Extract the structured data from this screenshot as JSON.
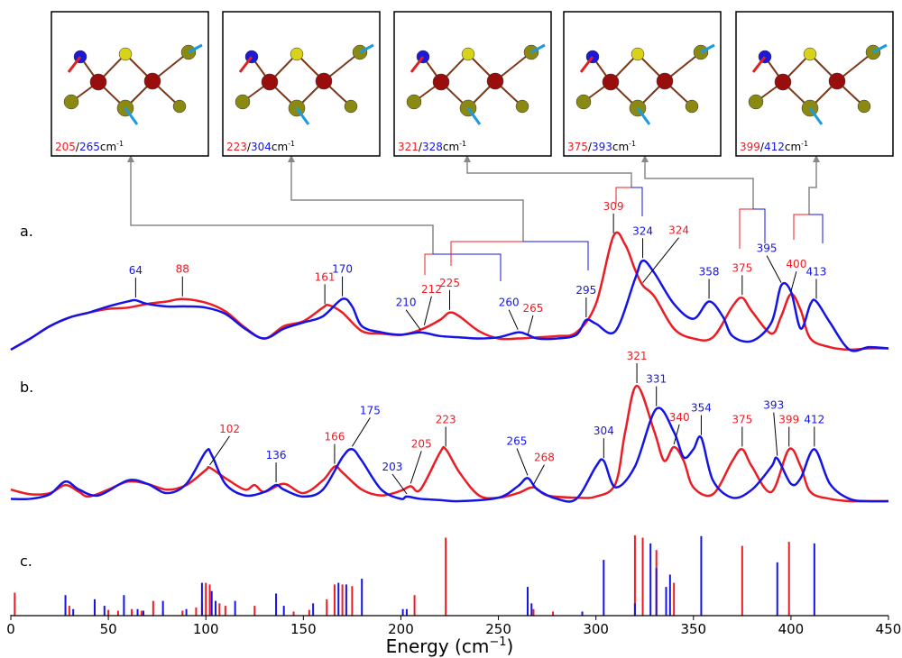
{
  "chart_data": [
    {
      "type": "line",
      "label": "a.",
      "xlim": [
        0,
        450
      ],
      "ylim": [
        0,
        100
      ],
      "series": [
        {
          "color": "#ec1c24",
          "x": [
            0,
            10,
            20,
            30,
            40,
            50,
            60,
            70,
            80,
            88,
            100,
            110,
            120,
            130,
            140,
            150,
            160,
            163,
            170,
            180,
            190,
            200,
            210,
            220,
            225,
            230,
            240,
            250,
            260,
            270,
            280,
            290,
            300,
            309,
            315,
            320,
            324,
            330,
            340,
            350,
            360,
            370,
            375,
            380,
            390,
            395,
            400,
            405,
            410,
            420,
            430,
            440,
            450
          ],
          "values": [
            3,
            12,
            22,
            29,
            33,
            36,
            37,
            40,
            42,
            44,
            41,
            34,
            21,
            12,
            22,
            26,
            37,
            39,
            33,
            18,
            16,
            15,
            19,
            27,
            33,
            30,
            18,
            12,
            12,
            13,
            14,
            17,
            40,
            95,
            88,
            68,
            55,
            46,
            20,
            12,
            13,
            38,
            45,
            34,
            16,
            30,
            48,
            35,
            12,
            5,
            3,
            4,
            4
          ],
          "peaks": [
            88,
            161,
            212,
            225,
            265,
            309,
            324,
            375,
            400
          ]
        },
        {
          "color": "#1414e6",
          "x": [
            0,
            10,
            20,
            30,
            40,
            50,
            60,
            64,
            70,
            80,
            90,
            100,
            110,
            120,
            130,
            140,
            150,
            160,
            170,
            175,
            180,
            190,
            200,
            210,
            220,
            230,
            240,
            250,
            260,
            265,
            270,
            280,
            290,
            295,
            300,
            310,
            320,
            324,
            330,
            340,
            350,
            358,
            365,
            370,
            380,
            390,
            395,
            400,
            405,
            410,
            413,
            420,
            430,
            440,
            450
          ],
          "values": [
            3,
            12,
            22,
            29,
            33,
            38,
            42,
            43,
            40,
            38,
            38,
            37,
            32,
            20,
            12,
            20,
            25,
            30,
            44,
            38,
            22,
            17,
            15,
            17,
            14,
            13,
            12,
            13,
            17,
            15,
            12,
            12,
            15,
            27,
            24,
            18,
            60,
            75,
            65,
            40,
            28,
            42,
            30,
            14,
            10,
            25,
            55,
            50,
            20,
            40,
            42,
            25,
            3,
            5,
            4
          ],
          "peaks": [
            64,
            170,
            210,
            260,
            295,
            324,
            358,
            395,
            413
          ]
        }
      ]
    },
    {
      "type": "line",
      "label": "b.",
      "xlim": [
        0,
        450
      ],
      "ylim": [
        0,
        100
      ],
      "series": [
        {
          "color": "#ec1c24",
          "x": [
            0,
            10,
            20,
            28,
            35,
            40,
            50,
            60,
            70,
            80,
            90,
            100,
            102,
            110,
            120,
            125,
            130,
            140,
            150,
            160,
            166,
            170,
            180,
            190,
            200,
            205,
            210,
            220,
            223,
            230,
            240,
            250,
            260,
            268,
            275,
            290,
            300,
            310,
            315,
            321,
            330,
            335,
            340,
            345,
            350,
            360,
            370,
            375,
            380,
            390,
            399,
            405,
            410,
            420,
            430,
            440,
            450
          ],
          "values": [
            10,
            6,
            7,
            14,
            8,
            4,
            10,
            17,
            15,
            10,
            14,
            27,
            29,
            20,
            10,
            14,
            8,
            15,
            7,
            18,
            30,
            25,
            10,
            5,
            9,
            13,
            10,
            42,
            45,
            25,
            5,
            3,
            7,
            12,
            5,
            3,
            4,
            15,
            60,
            100,
            60,
            35,
            47,
            35,
            12,
            6,
            35,
            45,
            30,
            8,
            45,
            30,
            8,
            2,
            0,
            0,
            0
          ],
          "peaks": [
            102,
            166,
            205,
            223,
            268,
            321,
            340,
            375,
            399
          ]
        },
        {
          "color": "#1414e6",
          "x": [
            0,
            10,
            20,
            28,
            35,
            45,
            60,
            70,
            80,
            90,
            100,
            103,
            110,
            120,
            130,
            136,
            140,
            150,
            160,
            170,
            175,
            180,
            190,
            200,
            203,
            210,
            220,
            230,
            250,
            260,
            265,
            270,
            280,
            290,
            300,
            304,
            310,
            320,
            331,
            340,
            345,
            350,
            354,
            360,
            370,
            380,
            390,
            393,
            400,
            405,
            412,
            420,
            430,
            440,
            450
          ],
          "values": [
            2,
            2,
            6,
            17,
            10,
            5,
            18,
            15,
            7,
            15,
            43,
            40,
            15,
            5,
            8,
            14,
            10,
            4,
            10,
            38,
            45,
            35,
            10,
            2,
            4,
            2,
            1,
            0,
            3,
            13,
            20,
            10,
            2,
            2,
            30,
            35,
            12,
            30,
            80,
            60,
            38,
            45,
            55,
            18,
            3,
            10,
            30,
            37,
            15,
            20,
            45,
            15,
            2,
            0,
            0
          ],
          "peaks": [
            136,
            175,
            203,
            265,
            304,
            331,
            354,
            393,
            412
          ]
        }
      ]
    },
    {
      "type": "stick",
      "label": "c.",
      "xlim": [
        0,
        450
      ],
      "ylim": [
        0,
        100
      ],
      "xticks": [
        0,
        50,
        100,
        150,
        200,
        250,
        300,
        350,
        400,
        450
      ],
      "xlabel": {
        "text": "Energy (cm",
        "sup": "−1",
        "close": ")"
      },
      "series": [
        {
          "color": "#ec1c24",
          "x": [
            2,
            28,
            30,
            43,
            50,
            55,
            62,
            67,
            73,
            78,
            88,
            95,
            98,
            100,
            102,
            107,
            110,
            125,
            145,
            153,
            162,
            166,
            170,
            175,
            207,
            223,
            268,
            278,
            320,
            324,
            331,
            340,
            375,
            399
          ],
          "values": [
            28,
            10,
            12,
            5,
            7,
            6,
            8,
            6,
            18,
            5,
            6,
            10,
            15,
            40,
            38,
            15,
            12,
            12,
            5,
            7,
            20,
            38,
            38,
            36,
            25,
            95,
            8,
            5,
            98,
            95,
            80,
            40,
            85,
            90
          ]
        },
        {
          "color": "#1414e6",
          "x": [
            28,
            32,
            43,
            48,
            58,
            65,
            68,
            78,
            90,
            98,
            103,
            105,
            115,
            136,
            140,
            155,
            168,
            172,
            180,
            201,
            203,
            265,
            267,
            293,
            304,
            320,
            328,
            331,
            336,
            338,
            354,
            393,
            412
          ],
          "values": [
            25,
            8,
            20,
            12,
            25,
            8,
            6,
            18,
            8,
            40,
            30,
            18,
            18,
            27,
            12,
            15,
            40,
            38,
            45,
            8,
            8,
            35,
            15,
            5,
            68,
            15,
            88,
            58,
            35,
            50,
            97,
            65,
            88
          ]
        }
      ]
    }
  ],
  "insets": [
    {
      "red": 205,
      "sep": "/",
      "blue": 265,
      "unit": "cm",
      "exp": "-1"
    },
    {
      "red": 223,
      "sep": "/",
      "blue": 304,
      "unit": "cm",
      "exp": "-1"
    },
    {
      "red": 321,
      "sep": "/",
      "blue": 328,
      "unit": "cm",
      "exp": "-1"
    },
    {
      "red": 375,
      "sep": "/",
      "blue": 393,
      "unit": "cm",
      "exp": "-1"
    },
    {
      "red": 399,
      "sep": "/",
      "blue": 412,
      "unit": "cm",
      "exp": "-1"
    }
  ]
}
